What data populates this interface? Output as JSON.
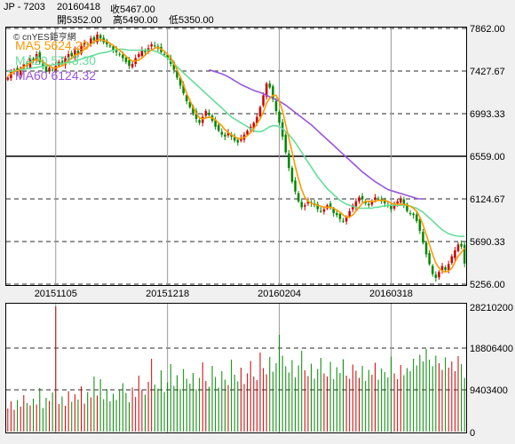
{
  "header": {
    "symbol": "JP - 7203",
    "date": "20160418",
    "close": "收5467.00",
    "open": "開5352.00",
    "high": "高5490.00",
    "low": "低5350.00"
  },
  "watermark": "© cnYES鉅亨網",
  "colors": {
    "up": "#cc0000",
    "down": "#008800",
    "ma5": "#ff9900",
    "ma20": "#66dd99",
    "ma60": "#9955dd"
  },
  "chart_data": [
    {
      "type": "candlestick",
      "legend": [
        {
          "name": "MA5",
          "value": "5624.20"
        },
        {
          "name": "MA20",
          "value": "5743.30"
        },
        {
          "name": "MA60",
          "value": "6124.32"
        }
      ],
      "yticks": [
        7862.0,
        7427.67,
        6993.33,
        6559.0,
        6124.67,
        5690.33,
        5256.0
      ],
      "ytick_labels": [
        "7862.00",
        "7427.67",
        "6993.33",
        "6559.00",
        "6124.67",
        "5690.33",
        "5256.00"
      ],
      "ylim": [
        5256,
        7862
      ],
      "xticks": [
        "20151105",
        "20151218",
        "20160204",
        "20160318"
      ],
      "x_count": 144,
      "xtick_index": [
        15,
        50,
        85,
        120
      ],
      "grid": true,
      "closes": [
        7360,
        7420,
        7440,
        7400,
        7460,
        7500,
        7480,
        7560,
        7540,
        7600,
        7520,
        7480,
        7420,
        7460,
        7440,
        7480,
        7520,
        7500,
        7560,
        7600,
        7580,
        7640,
        7600,
        7680,
        7720,
        7700,
        7760,
        7740,
        7800,
        7760,
        7720,
        7700,
        7680,
        7640,
        7620,
        7600,
        7560,
        7520,
        7480,
        7500,
        7560,
        7600,
        7640,
        7620,
        7660,
        7700,
        7680,
        7660,
        7620,
        7600,
        7560,
        7500,
        7440,
        7360,
        7280,
        7200,
        7120,
        7060,
        7000,
        6940,
        6900,
        6960,
        7020,
        6980,
        6920,
        6860,
        6820,
        6780,
        6760,
        6800,
        6760,
        6720,
        6700,
        6740,
        6780,
        6820,
        6860,
        6900,
        6960,
        7060,
        7180,
        7300,
        7260,
        7140,
        7020,
        6900,
        6760,
        6600,
        6440,
        6300,
        6200,
        6100,
        6040,
        6060,
        6100,
        6080,
        6060,
        6020,
        6000,
        6020,
        6060,
        6040,
        5980,
        5960,
        5920,
        5900,
        5940,
        6000,
        6060,
        6100,
        6140,
        6120,
        6080,
        6060,
        6100,
        6140,
        6120,
        6100,
        6080,
        6060,
        6020,
        6060,
        6100,
        6120,
        6060,
        6000,
        5980,
        5960,
        5900,
        5800,
        5680,
        5560,
        5460,
        5360,
        5320,
        5380,
        5440,
        5400,
        5460,
        5540,
        5600,
        5660,
        5640,
        5467
      ],
      "ma5": [
        7380,
        7400,
        7420,
        7430,
        7450,
        7470,
        7490,
        7510,
        7530,
        7550,
        7540,
        7520,
        7500,
        7480,
        7460,
        7460,
        7470,
        7480,
        7500,
        7530,
        7560,
        7590,
        7600,
        7620,
        7650,
        7680,
        7700,
        7730,
        7740,
        7750,
        7740,
        7730,
        7710,
        7690,
        7660,
        7640,
        7610,
        7580,
        7550,
        7530,
        7530,
        7540,
        7560,
        7590,
        7620,
        7640,
        7660,
        7670,
        7650,
        7630,
        7600,
        7560,
        7510,
        7440,
        7370,
        7290,
        7200,
        7130,
        7060,
        7000,
        6950,
        6940,
        6950,
        6960,
        6950,
        6930,
        6900,
        6870,
        6830,
        6800,
        6780,
        6760,
        6740,
        6740,
        6750,
        6770,
        6800,
        6840,
        6890,
        6940,
        7010,
        7100,
        7150,
        7180,
        7180,
        7120,
        7020,
        6880,
        6740,
        6600,
        6460,
        6330,
        6220,
        6140,
        6100,
        6080,
        6070,
        6060,
        6050,
        6040,
        6040,
        6040,
        6030,
        6010,
        5990,
        5960,
        5940,
        5940,
        5960,
        6000,
        6040,
        6080,
        6100,
        6100,
        6100,
        6100,
        6110,
        6110,
        6110,
        6100,
        6080,
        6070,
        6070,
        6070,
        6070,
        6060,
        6050,
        6030,
        6000,
        5940,
        5860,
        5760,
        5660,
        5560,
        5470,
        5420,
        5390,
        5380,
        5390,
        5420,
        5480,
        5540,
        5580,
        5624.2
      ],
      "ma20": [
        7420,
        7425,
        7430,
        7435,
        7440,
        7445,
        7450,
        7455,
        7460,
        7465,
        7470,
        7475,
        7480,
        7485,
        7490,
        7495,
        7500,
        7505,
        7510,
        7515,
        7520,
        7530,
        7540,
        7550,
        7560,
        7570,
        7580,
        7590,
        7600,
        7610,
        7615,
        7620,
        7630,
        7640,
        7645,
        7650,
        7650,
        7645,
        7640,
        7640,
        7640,
        7640,
        7640,
        7640,
        7640,
        7640,
        7630,
        7620,
        7600,
        7580,
        7560,
        7530,
        7500,
        7470,
        7440,
        7410,
        7380,
        7350,
        7320,
        7290,
        7260,
        7230,
        7200,
        7170,
        7140,
        7110,
        7080,
        7050,
        7020,
        6990,
        6960,
        6940,
        6920,
        6900,
        6880,
        6860,
        6840,
        6820,
        6810,
        6810,
        6820,
        6840,
        6860,
        6870,
        6870,
        6860,
        6840,
        6810,
        6780,
        6740,
        6700,
        6650,
        6600,
        6550,
        6500,
        6450,
        6400,
        6350,
        6310,
        6270,
        6230,
        6200,
        6170,
        6140,
        6110,
        6090,
        6070,
        6060,
        6050,
        6040,
        6030,
        6030,
        6030,
        6030,
        6030,
        6040,
        6040,
        6050,
        6050,
        6060,
        6060,
        6060,
        6060,
        6060,
        6060,
        6060,
        6050,
        6040,
        6030,
        6010,
        5990,
        5960,
        5930,
        5900,
        5870,
        5840,
        5810,
        5790,
        5770,
        5760,
        5750,
        5745,
        5743,
        5743.3
      ],
      "ma60": [
        null,
        null,
        null,
        null,
        null,
        null,
        null,
        null,
        null,
        null,
        null,
        null,
        null,
        null,
        null,
        null,
        null,
        null,
        null,
        null,
        null,
        null,
        null,
        null,
        null,
        null,
        null,
        null,
        null,
        null,
        null,
        null,
        null,
        null,
        null,
        null,
        null,
        null,
        null,
        null,
        null,
        null,
        null,
        null,
        null,
        null,
        null,
        null,
        null,
        null,
        null,
        null,
        null,
        null,
        null,
        null,
        null,
        null,
        null,
        null,
        null,
        null,
        null,
        7440,
        7430,
        7420,
        7410,
        7400,
        7385,
        7370,
        7350,
        7330,
        7310,
        7290,
        7275,
        7260,
        7245,
        7230,
        7220,
        7210,
        7195,
        7180,
        7165,
        7150,
        7135,
        7120,
        7100,
        7080,
        7055,
        7030,
        7005,
        6980,
        6955,
        6930,
        6905,
        6880,
        6850,
        6820,
        6790,
        6760,
        6730,
        6700,
        6670,
        6640,
        6610,
        6580,
        6550,
        6520,
        6490,
        6460,
        6430,
        6400,
        6375,
        6350,
        6325,
        6300,
        6280,
        6260,
        6240,
        6220,
        6210,
        6200,
        6190,
        6180,
        6170,
        6160,
        6150,
        6140,
        6130,
        6125,
        6124.32
      ]
    },
    {
      "type": "bar",
      "title": "volume",
      "yticks": [
        0,
        9403400,
        18806400,
        28210200
      ],
      "ytick_labels": [
        "0",
        "9403400",
        "18806400",
        "28210200"
      ],
      "ylim": [
        0,
        28210200
      ],
      "values": [
        5200000,
        6800000,
        4900000,
        7100000,
        5600000,
        8200000,
        6400000,
        5900000,
        7400000,
        6100000,
        9800000,
        5300000,
        7600000,
        6900000,
        8800000,
        28210200,
        6200000,
        7900000,
        5800000,
        9100000,
        6700000,
        8400000,
        7200000,
        10200000,
        6300000,
        8900000,
        7700000,
        12400000,
        8100000,
        11800000,
        7300000,
        9600000,
        6800000,
        8500000,
        7100000,
        9300000,
        10900000,
        8700000,
        6600000,
        9900000,
        7800000,
        12600000,
        9400000,
        8300000,
        11200000,
        16400000,
        10600000,
        9700000,
        13800000,
        8900000,
        11100000,
        15200000,
        10300000,
        12700000,
        9600000,
        14100000,
        11900000,
        10800000,
        13200000,
        9500000,
        12100000,
        15600000,
        11400000,
        10100000,
        14800000,
        12300000,
        9900000,
        13600000,
        11700000,
        10500000,
        16200000,
        12800000,
        11300000,
        14400000,
        10700000,
        13100000,
        15900000,
        12400000,
        11600000,
        17800000,
        14300000,
        12900000,
        16800000,
        13500000,
        15400000,
        21800000,
        17100000,
        14700000,
        13300000,
        16100000,
        12200000,
        14900000,
        18200000,
        13800000,
        12500000,
        15300000,
        11900000,
        14100000,
        16600000,
        13100000,
        12400000,
        15700000,
        11800000,
        14500000,
        13200000,
        16300000,
        12600000,
        11900000,
        15100000,
        13700000,
        12100000,
        14800000,
        11400000,
        13900000,
        12800000,
        15500000,
        11700000,
        14200000,
        13400000,
        12200000,
        16900000,
        13100000,
        11800000,
        15000000,
        12700000,
        14300000,
        13600000,
        16400000,
        14900000,
        17300000,
        15800000,
        18600000,
        16200000,
        14700000,
        17100000,
        15400000,
        13900000,
        16700000,
        14400000,
        15800000,
        13600000,
        17000000,
        15200000,
        12100000
      ]
    }
  ]
}
